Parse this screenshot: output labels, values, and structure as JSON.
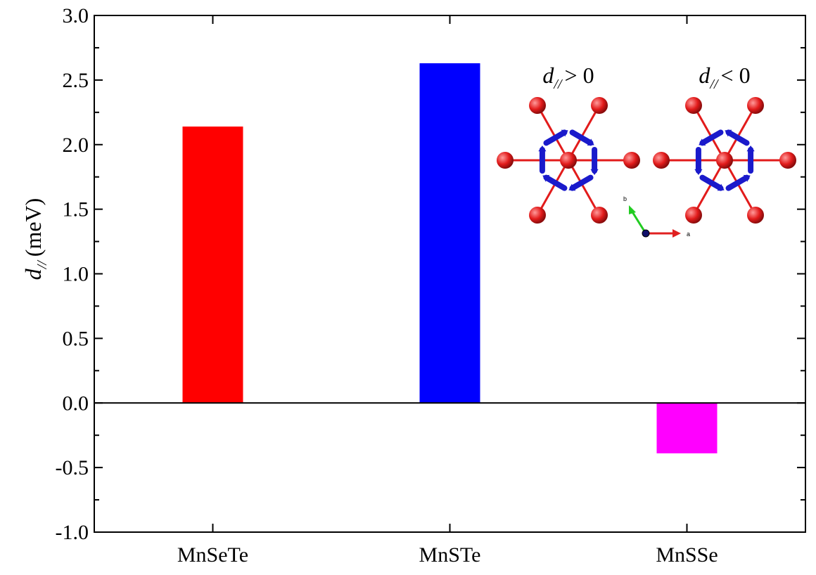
{
  "chart_data": {
    "type": "bar",
    "title": "",
    "xlabel": "",
    "ylabel": {
      "symbol": "d",
      "subscript": "//",
      "unit": "(meV)"
    },
    "categories": [
      "MnSeTe",
      "MnSTe",
      "MnSSe"
    ],
    "values": [
      2.14,
      2.63,
      -0.39
    ],
    "bar_colors": [
      "#ff0000",
      "#0000ff",
      "#ff00ff"
    ],
    "ylim": [
      -1.0,
      3.0
    ],
    "yticks": [
      "-1.0",
      "-0.5",
      "0.0",
      "0.5",
      "1.0",
      "1.5",
      "2.0",
      "2.5",
      "3.0"
    ],
    "zero_line": true,
    "grid": false,
    "legend": null,
    "inset": {
      "left_label": {
        "symbol": "d",
        "subscript": "//",
        "relation": "> 0"
      },
      "right_label": {
        "symbol": "d",
        "subscript": "//",
        "relation": "< 0"
      },
      "axes_labels": [
        "b",
        "a"
      ],
      "atom_color": "#e21b1b",
      "arrow_color": "#1a1acb"
    }
  }
}
